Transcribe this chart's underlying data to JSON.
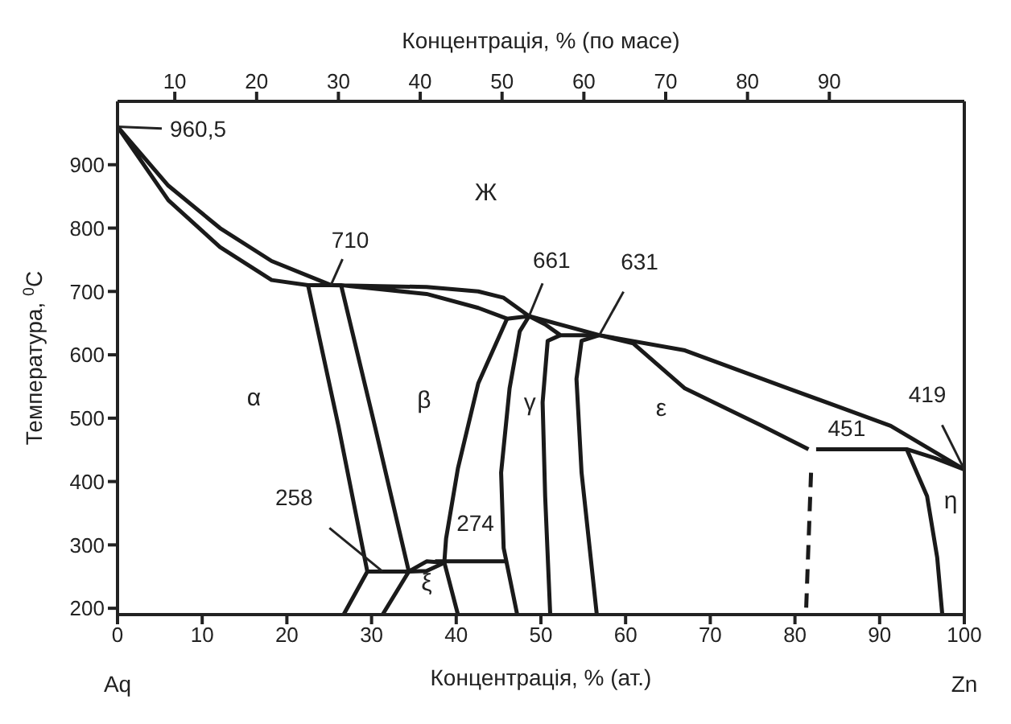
{
  "chart_data": {
    "type": "line",
    "xlabel": "Концентрація, % (ат.)",
    "x2label": "Концентрація, % (по масе)",
    "ylabel": "Температура, $^{0}$C",
    "xlim": [
      0,
      100
    ],
    "xticks": [
      0,
      10,
      20,
      30,
      40,
      50,
      60,
      70,
      80,
      90,
      100
    ],
    "x2lim": [
      3,
      106.5
    ],
    "x2ticks": [
      10,
      20,
      30,
      40,
      50,
      60,
      70,
      80,
      90
    ],
    "ylim": [
      190,
      1000
    ],
    "yticks": [
      200,
      300,
      400,
      500,
      600,
      700,
      800,
      900
    ],
    "marker": "none",
    "line_style": "solid",
    "series": [
      {
        "color": "#1a1a1a",
        "x": [
          48.6,
          46,
          42.6,
          36.5,
          26.4,
          22.5,
          18.2,
          12.1,
          6,
          0,
          6,
          12.1,
          18.2,
          25.2,
          36.5,
          42.6,
          45.6,
          48.6,
          56.9,
          67,
          79.2,
          91.3,
          100,
          96.5,
          93.2,
          82.5
        ],
        "values": [
          661,
          657,
          674,
          696,
          710,
          710,
          718,
          770,
          844,
          960,
          867,
          800,
          748,
          710,
          707,
          700,
          690,
          661,
          631,
          607,
          547,
          488,
          419,
          437,
          451,
          451
        ]
      },
      {
        "color": "#1a1a1a",
        "x": [
          93.2,
          95.6,
          96.8,
          97.4
        ],
        "values": [
          451,
          377,
          280,
          190
        ]
      },
      {
        "color": "#1a1a1a",
        "x": [
          22.5,
          26.1,
          29.5,
          26.7
        ],
        "values": [
          710,
          487,
          258,
          190
        ]
      },
      {
        "color": "#1a1a1a",
        "x": [
          26.4,
          30.4,
          34.4,
          31.3
        ],
        "values": [
          710,
          487,
          258,
          190
        ]
      },
      {
        "color": "#1a1a1a",
        "x": [
          29.5,
          34.4,
          36.5,
          38.6
        ],
        "values": [
          258,
          258,
          259,
          272
        ]
      },
      {
        "color": "#1a1a1a",
        "x": [
          34.4,
          36.5,
          38.6,
          40.2
        ],
        "values": [
          258,
          274,
          272,
          190
        ]
      },
      {
        "color": "#1a1a1a",
        "x": [
          37.5,
          46
        ],
        "values": [
          274,
          274
        ]
      },
      {
        "color": "#1a1a1a",
        "x": [
          38.6,
          38.8,
          40.2,
          42.6,
          46
        ],
        "values": [
          274,
          310,
          421,
          555,
          657
        ]
      },
      {
        "color": "#1a1a1a",
        "x": [
          48.6,
          47.5,
          46.3,
          45.3,
          45.6,
          47.2
        ],
        "values": [
          661,
          637,
          547,
          414,
          295,
          190
        ]
      },
      {
        "color": "#1a1a1a",
        "x": [
          48.6,
          50.5,
          52.3,
          56.9,
          60.9,
          67,
          76.1,
          81.6
        ],
        "values": [
          661,
          648,
          631,
          631,
          618,
          547,
          488,
          451
        ]
      },
      {
        "color": "#1a1a1a",
        "x": [
          52.3,
          50.8,
          50.2,
          50.5,
          51.1
        ],
        "values": [
          631,
          622,
          525,
          377,
          190
        ]
      },
      {
        "color": "#1a1a1a",
        "x": [
          56.9,
          54.8,
          54.2,
          54.8,
          55.7,
          56.6
        ],
        "values": [
          631,
          622,
          562,
          414,
          302,
          190
        ]
      },
      {
        "color": "#1a1a1a",
        "line_style": "dashed",
        "x": [
          81.9,
          81.3
        ],
        "values": [
          414,
          190
        ]
      }
    ],
    "annotations": [
      {
        "text": "960,5",
        "x": 0,
        "y": 960
      },
      {
        "text": "710",
        "x": 25.2,
        "y": 710
      },
      {
        "text": "661",
        "x": 48.6,
        "y": 661
      },
      {
        "text": "631",
        "x": 56.9,
        "y": 631
      },
      {
        "text": "451",
        "x": 82.5,
        "y": 451
      },
      {
        "text": "419",
        "x": 100,
        "y": 419
      },
      {
        "text": "258",
        "x": 31.3,
        "y": 258
      },
      {
        "text": "274",
        "x": 37.5,
        "y": 274
      },
      "Ж",
      "α",
      "β",
      "γ",
      "ε",
      "η",
      "ξ",
      "Aq",
      "Zn"
    ]
  }
}
